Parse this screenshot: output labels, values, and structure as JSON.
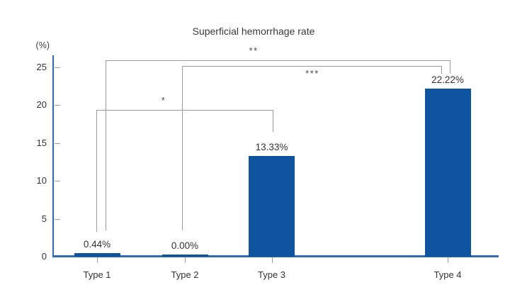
{
  "chart_data": {
    "type": "bar",
    "title": "Superficial hemorrhage rate",
    "ylabel": "(%)",
    "xlabel": "",
    "categories": [
      "Type 1",
      "Type 2",
      "Type 3",
      "Type 4"
    ],
    "values": [
      0.44,
      0.0,
      13.33,
      22.22
    ],
    "value_labels": [
      "0.44%",
      "0.00%",
      "13.33%",
      "22.22%"
    ],
    "yticks": [
      0,
      5,
      10,
      15,
      20,
      25
    ],
    "ylim": [
      0,
      26.5
    ],
    "grid": false,
    "legend_position": "none",
    "significance": [
      {
        "label": "*",
        "between": [
          "Type 1",
          "Type 3"
        ]
      },
      {
        "label": "**",
        "between": [
          "Type 1",
          "Type 4"
        ]
      },
      {
        "label": "***",
        "between": [
          "Type 2",
          "Type 4"
        ]
      }
    ]
  },
  "colors": {
    "bar": "#0d539e",
    "axis": "#2e6cb0",
    "bracket": "#9b9b9b",
    "text": "#333333"
  }
}
